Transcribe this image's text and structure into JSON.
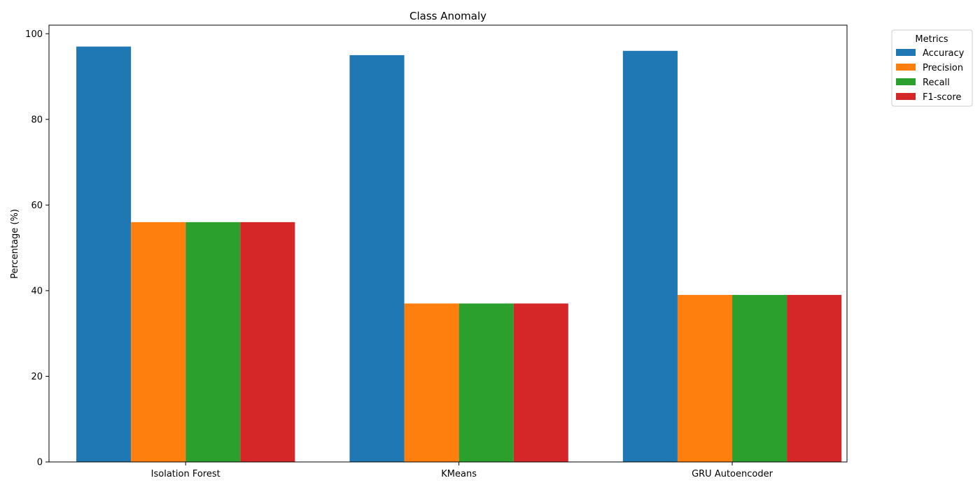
{
  "chart_data": {
    "type": "bar",
    "title": "Class Anomaly",
    "xlabel": "",
    "ylabel": "Percentage (%)",
    "ylim": [
      0,
      102
    ],
    "yticks": [
      0,
      20,
      40,
      60,
      80,
      100
    ],
    "categories": [
      "Isolation Forest",
      "KMeans",
      "GRU Autoencoder"
    ],
    "series": [
      {
        "name": "Accuracy",
        "color": "#1f77b4",
        "values": [
          97,
          95,
          96
        ]
      },
      {
        "name": "Precision",
        "color": "#ff7f0e",
        "values": [
          56,
          37,
          39
        ]
      },
      {
        "name": "Recall",
        "color": "#2ca02c",
        "values": [
          56,
          37,
          39
        ]
      },
      {
        "name": "F1-score",
        "color": "#d62728",
        "values": [
          56,
          37,
          39
        ]
      }
    ],
    "legend": {
      "title": "Metrics",
      "placement": "outside-top-right"
    },
    "grid": false
  }
}
